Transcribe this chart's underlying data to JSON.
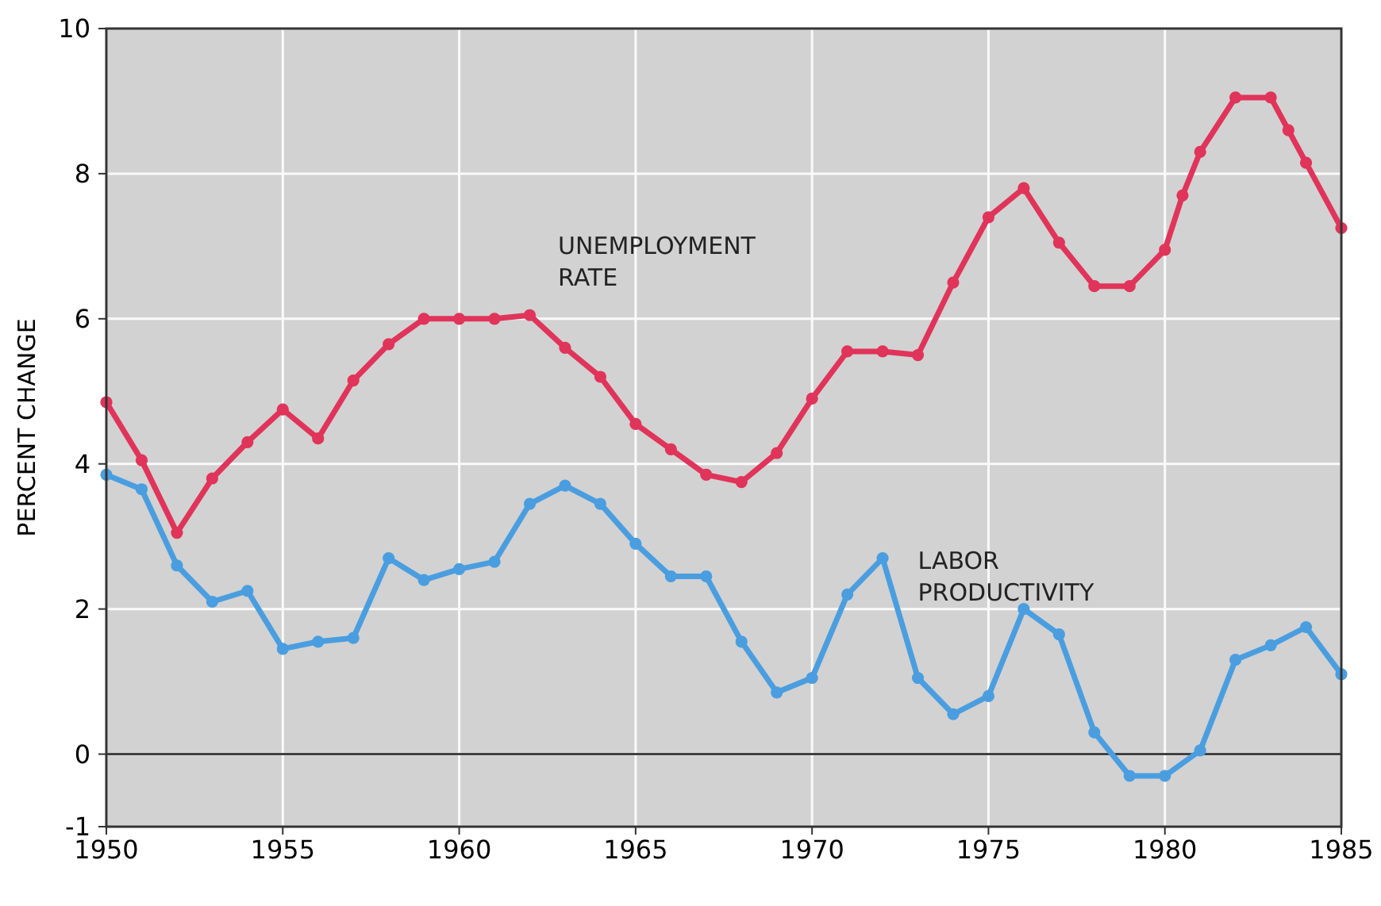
{
  "chart_data": {
    "type": "line",
    "ylabel": "PERCENT CHANGE",
    "xlim": [
      1950,
      1985
    ],
    "xticks": [
      1950,
      1955,
      1960,
      1965,
      1970,
      1975,
      1980,
      1985
    ],
    "ylim": [
      -1,
      10
    ],
    "yticks": [
      -1,
      0,
      2,
      4,
      6,
      8,
      10
    ],
    "grid": true,
    "marker": "circle",
    "ref_lines": [
      {
        "axis": "y",
        "value": 0,
        "color": "#222222"
      }
    ],
    "series": [
      {
        "name": "UNEMPLOYMENT\nRATE",
        "color": "#e0345a",
        "x": [
          1950,
          1951,
          1952,
          1953,
          1954,
          1955,
          1956,
          1957,
          1958,
          1959,
          1960,
          1961,
          1962,
          1963,
          1964,
          1965,
          1966,
          1967,
          1968,
          1969,
          1970,
          1971,
          1972,
          1973,
          1974,
          1975,
          1976,
          1977,
          1978,
          1979,
          1980,
          1980.5,
          1981,
          1982,
          1983,
          1983.5,
          1984,
          1985
        ],
        "values": [
          4.85,
          4.05,
          3.05,
          3.8,
          4.3,
          4.75,
          4.35,
          5.15,
          5.65,
          6.0,
          6.0,
          6.0,
          6.05,
          5.6,
          5.2,
          4.55,
          4.2,
          3.85,
          3.75,
          4.15,
          4.9,
          5.55,
          5.55,
          5.5,
          6.5,
          7.4,
          7.8,
          7.05,
          6.45,
          6.45,
          6.95,
          7.7,
          8.3,
          9.05,
          9.05,
          8.6,
          8.15,
          7.25
        ]
      },
      {
        "name": "LABOR\nPRODUCTIVITY",
        "color": "#4a9ee0",
        "x": [
          1950,
          1951,
          1952,
          1953,
          1954,
          1955,
          1956,
          1957,
          1958,
          1959,
          1960,
          1961,
          1962,
          1963,
          1964,
          1965,
          1966,
          1967,
          1968,
          1969,
          1970,
          1971,
          1972,
          1973,
          1974,
          1975,
          1976,
          1977,
          1978,
          1979,
          1980,
          1981,
          1982,
          1983,
          1984,
          1985
        ],
        "values": [
          3.85,
          3.65,
          2.6,
          2.1,
          2.25,
          1.45,
          1.55,
          1.6,
          2.7,
          2.4,
          2.55,
          2.65,
          3.45,
          3.7,
          3.45,
          2.9,
          2.45,
          2.45,
          1.55,
          0.85,
          1.05,
          2.2,
          2.7,
          1.05,
          0.55,
          0.8,
          2.0,
          1.65,
          0.3,
          -0.3,
          -0.3,
          0.05,
          1.3,
          1.5,
          1.75,
          1.1
        ]
      }
    ]
  }
}
